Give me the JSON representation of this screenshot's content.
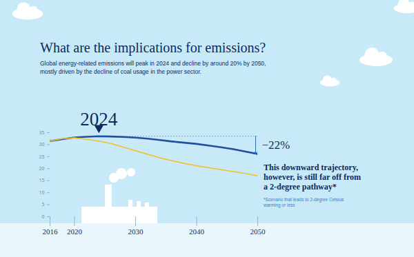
{
  "chart_data": {
    "type": "line",
    "title": "What are the implications for emissions?",
    "subtitle": "Global energy-related emissions will peak in 2024 and decline by around 20% by 2050, mostly driven by the decline of coal usage in the power sector.",
    "x": [
      2016,
      2018,
      2020,
      2022,
      2024,
      2026,
      2028,
      2030,
      2032,
      2034,
      2036,
      2038,
      2040,
      2042,
      2044,
      2046,
      2048,
      2050
    ],
    "series": [
      {
        "color": "#1f4f9e",
        "values": [
          31.5,
          32.3,
          33.0,
          33.3,
          33.5,
          33.4,
          33.2,
          32.9,
          32.5,
          31.9,
          31.3,
          30.8,
          30.3,
          29.6,
          28.9,
          28.1,
          27.1,
          26.1
        ]
      },
      {
        "color": "#f2c12e",
        "values": [
          31.5,
          32.5,
          32.8,
          32.2,
          31.5,
          30.5,
          29.0,
          27.5,
          26.0,
          24.5,
          23.3,
          22.2,
          21.2,
          20.4,
          19.6,
          18.8,
          18.0,
          17.0
        ]
      }
    ],
    "xlim": [
      2016,
      2050
    ],
    "xticks": [
      2016,
      2020,
      2030,
      2040,
      2050
    ],
    "ylim": [
      0,
      35
    ],
    "yticks": [
      0,
      5,
      10,
      15,
      20,
      25,
      30,
      35
    ],
    "peak": {
      "label": "2024",
      "x": 2024,
      "y": 33.5
    },
    "change": {
      "label": "−22%"
    },
    "callout": "This downward trajectory, however, is still far off from a 2-degree pathway*",
    "footnote": "*Scenario that leads to 2-degree Celsius warming or less"
  }
}
